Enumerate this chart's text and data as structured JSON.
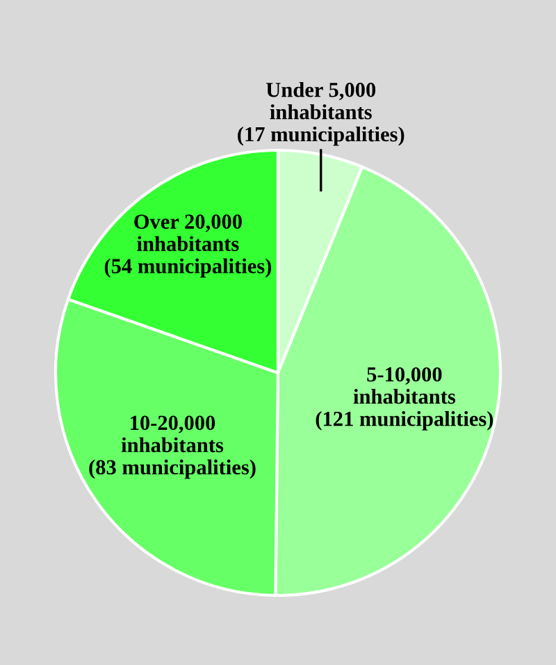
{
  "chart_data": {
    "type": "pie",
    "categories": [
      "Under 5,000\ninhabitants\n(17 municipalities)",
      "5-10,000\ninhabitants\n(121 municipalities)",
      "10-20,000\ninhabitants\n(83 municipalities)",
      "Over 20,000\ninhabitants\n(54 municipalities)"
    ],
    "values": [
      17,
      121,
      83,
      54
    ],
    "colors": [
      "#ccffcc",
      "#99ff99",
      "#66ff66",
      "#33ff33"
    ],
    "legend": false
  }
}
